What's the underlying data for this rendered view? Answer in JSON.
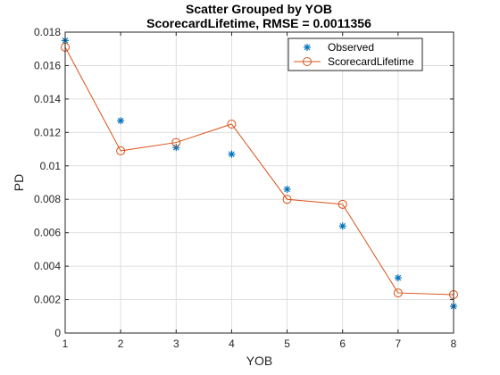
{
  "chart_data": {
    "type": "scatter",
    "title": "Scatter Grouped by YOB",
    "subtitle": "ScorecardLifetime, RMSE = 0.0011356",
    "xlabel": "YOB",
    "ylabel": "PD",
    "xlim": [
      1,
      8
    ],
    "ylim": [
      0,
      0.018
    ],
    "xticks": [
      "1",
      "2",
      "3",
      "4",
      "5",
      "6",
      "7",
      "8"
    ],
    "yticks": [
      "0",
      "0.002",
      "0.004",
      "0.006",
      "0.008",
      "0.01",
      "0.012",
      "0.014",
      "0.016",
      "0.018"
    ],
    "grid": true,
    "legend_position": "top-right",
    "series": [
      {
        "name": "Observed",
        "kind": "scatter",
        "marker": "asterisk",
        "color": "#0072BD",
        "x": [
          1,
          2,
          3,
          4,
          5,
          6,
          7,
          8
        ],
        "y": [
          0.0175,
          0.0127,
          0.0111,
          0.0107,
          0.0086,
          0.0064,
          0.0033,
          0.0016
        ]
      },
      {
        "name": "ScorecardLifetime",
        "kind": "line",
        "marker": "circle",
        "color": "#D95319",
        "x": [
          1,
          2,
          3,
          4,
          5,
          6,
          7,
          8
        ],
        "y": [
          0.0171,
          0.0109,
          0.0114,
          0.0125,
          0.008,
          0.0077,
          0.0024,
          0.0023
        ]
      }
    ]
  }
}
